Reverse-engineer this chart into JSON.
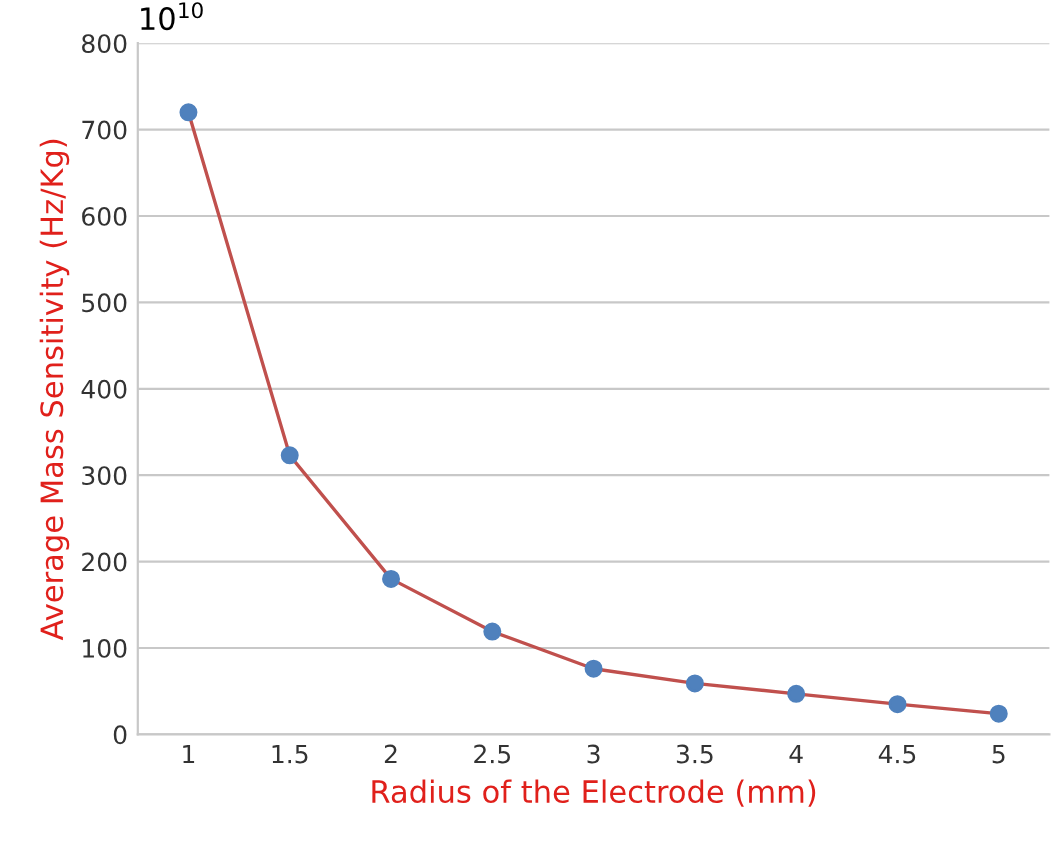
{
  "chart_data": {
    "type": "line",
    "xlabel": "Radius of the Electrode (mm)",
    "ylabel": "Average Mass Sensitivity (Hz/Kg)",
    "annotations": [
      "10$^{10}$"
    ],
    "categories": [
      "1",
      "1.5",
      "2",
      "2.5",
      "3",
      "3.5",
      "4",
      "4.5",
      "5"
    ],
    "series": [
      {
        "color": "#c0504d",
        "colors": [
          "#4f81bd",
          "#4f81bd",
          "#4f81bd",
          "#4f81bd",
          "#4f81bd",
          "#4f81bd",
          "#4f81bd",
          "#4f81bd",
          "#4f81bd"
        ],
        "values": [
          720,
          323,
          180,
          119,
          76,
          59,
          47,
          35,
          24
        ]
      }
    ],
    "ylim": [
      0,
      800
    ],
    "yticks": [
      0,
      100,
      200,
      300,
      400,
      500,
      600,
      700,
      800
    ],
    "grid": "y",
    "marker": "circle",
    "line_style": "solid"
  }
}
